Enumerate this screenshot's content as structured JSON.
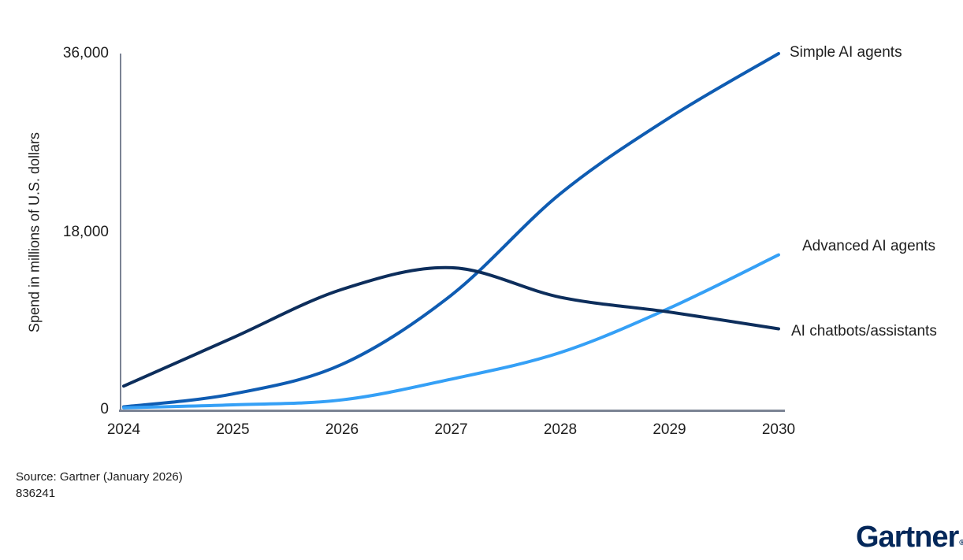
{
  "chart_data": {
    "type": "line",
    "title": "",
    "xlabel": "",
    "ylabel": "Spend in millions of U.S. dollars",
    "ylim": [
      0,
      36000
    ],
    "yticks": [
      36000,
      18000,
      0
    ],
    "ytick_labels": [
      "36,000",
      "18,000",
      "0"
    ],
    "categories": [
      "2024",
      "2025",
      "2026",
      "2027",
      "2028",
      "2029",
      "2030"
    ],
    "grid": false,
    "legend_position": "line-end-labels-right",
    "line_width": 4,
    "series": [
      {
        "name": "Simple AI agents",
        "color": "#0f5cb2",
        "values": [
          200,
          1500,
          4500,
          11500,
          21800,
          29500,
          36000
        ]
      },
      {
        "name": "Advanced AI agents",
        "color": "#35a0f6",
        "values": [
          100,
          400,
          900,
          3000,
          5700,
          10200,
          15600
        ]
      },
      {
        "name": "AI chatbots/assistants",
        "color": "#0d2e5c",
        "values": [
          2300,
          7200,
          12100,
          14300,
          11300,
          9800,
          8100
        ]
      }
    ]
  },
  "footer": {
    "source_line1": "Source: Gartner (January 2026)",
    "source_line2": "836241"
  },
  "branding": {
    "logo_text": "Gartner",
    "registered_mark": "®",
    "logo_color": "#04285a"
  },
  "colors": {
    "axis": "#7b8394",
    "text": "#1e1e1e"
  }
}
